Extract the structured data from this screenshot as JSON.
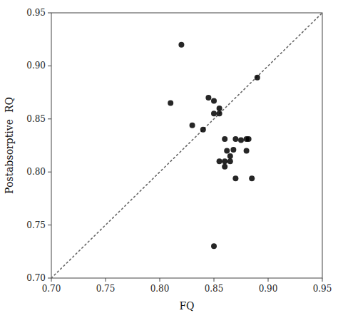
{
  "chart_data": {
    "type": "scatter",
    "x": [
      0.82,
      0.81,
      0.83,
      0.84,
      0.845,
      0.85,
      0.85,
      0.855,
      0.855,
      0.855,
      0.86,
      0.86,
      0.86,
      0.862,
      0.865,
      0.865,
      0.868,
      0.87,
      0.87,
      0.875,
      0.88,
      0.88,
      0.882,
      0.885,
      0.89,
      0.85
    ],
    "values": [
      0.92,
      0.865,
      0.844,
      0.84,
      0.87,
      0.867,
      0.855,
      0.86,
      0.855,
      0.81,
      0.831,
      0.81,
      0.805,
      0.82,
      0.815,
      0.81,
      0.821,
      0.831,
      0.794,
      0.83,
      0.831,
      0.82,
      0.831,
      0.794,
      0.889,
      0.73
    ],
    "xlabel": "FQ",
    "ylabel": "Postabsorptive  RQ",
    "xlim": [
      0.7,
      0.95
    ],
    "ylim": [
      0.7,
      0.95
    ],
    "xticks": [
      {
        "value": 0.7,
        "label": "0.70"
      },
      {
        "value": 0.75,
        "label": "0.75"
      },
      {
        "value": 0.8,
        "label": "0.80"
      },
      {
        "value": 0.85,
        "label": "0.85"
      },
      {
        "value": 0.9,
        "label": "0.90"
      },
      {
        "value": 0.95,
        "label": "0.95"
      }
    ],
    "yticks": [
      {
        "value": 0.7,
        "label": "0.70"
      },
      {
        "value": 0.75,
        "label": "0.75"
      },
      {
        "value": 0.8,
        "label": "0.80"
      },
      {
        "value": 0.85,
        "label": "0.85"
      },
      {
        "value": 0.9,
        "label": "0.90"
      },
      {
        "value": 0.95,
        "label": "0.95"
      }
    ],
    "color": "#000000",
    "line_style": "dotted",
    "grid": false
  }
}
